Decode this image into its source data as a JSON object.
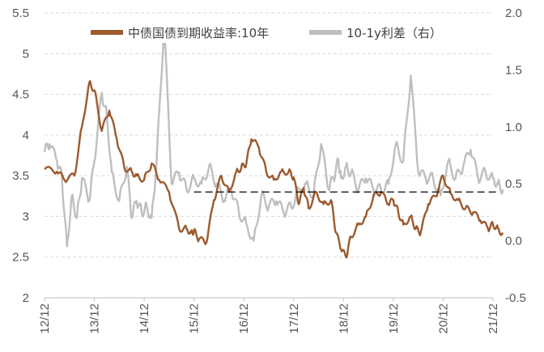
{
  "chart_data": {
    "type": "line",
    "x_tick_labels": [
      "12/12",
      "13/12",
      "14/12",
      "15/12",
      "16/12",
      "17/12",
      "18/12",
      "19/12",
      "20/12",
      "21/12"
    ],
    "y_left": {
      "ylim": [
        2,
        5.5
      ],
      "tick_labels": [
        "2",
        "2.5",
        "3",
        "3.5",
        "4",
        "4.5",
        "5",
        "5.5"
      ]
    },
    "y_right": {
      "ylim": [
        -0.5,
        2.0
      ],
      "tick_labels": [
        "-0.5",
        "0.0",
        "0.5",
        "1.0",
        "1.5",
        "2.0"
      ]
    },
    "legend": [
      "中债国债到期收益率:10年",
      "10-1y利差（右）"
    ],
    "series": [
      {
        "name": "中债国债到期收益率:10年",
        "axis": "left",
        "color": "#9c5a2e",
        "x": [
          0,
          0.25,
          0.4,
          0.6,
          0.75,
          0.9,
          1.0,
          1.15,
          1.3,
          1.45,
          1.6,
          1.75,
          1.85,
          2.0,
          2.15,
          2.3,
          2.5,
          2.7,
          2.85,
          2.95,
          3.0,
          3.1,
          3.25,
          3.4,
          3.55,
          3.7,
          3.85,
          3.95,
          4.05,
          4.15,
          4.3,
          4.45,
          4.6,
          4.75,
          4.9,
          5.0,
          5.1,
          5.2,
          5.3,
          5.45,
          5.6,
          5.75,
          5.85,
          5.95,
          6.05,
          6.15,
          6.3,
          6.45,
          6.6,
          6.75,
          6.9,
          7.0,
          7.1,
          7.2,
          7.35,
          7.45,
          7.55,
          7.7,
          7.85,
          8.0,
          8.15,
          8.3,
          8.45,
          8.6,
          8.75,
          8.9,
          9.0,
          9.1,
          9.2
        ],
        "y": [
          3.58,
          3.55,
          3.45,
          3.5,
          4.1,
          4.65,
          4.55,
          4.05,
          4.3,
          3.95,
          3.6,
          3.55,
          3.5,
          3.45,
          3.65,
          3.45,
          3.3,
          2.85,
          2.85,
          2.8,
          2.82,
          2.72,
          2.68,
          3.2,
          3.5,
          3.3,
          3.55,
          3.6,
          3.65,
          3.95,
          3.85,
          3.55,
          3.45,
          3.55,
          3.55,
          3.48,
          3.15,
          3.35,
          3.1,
          3.3,
          3.15,
          3.2,
          2.8,
          2.6,
          2.5,
          2.75,
          2.9,
          3.0,
          3.25,
          3.3,
          3.15,
          3.2,
          3.05,
          2.9,
          3.0,
          2.85,
          2.8,
          3.15,
          3.25,
          3.5,
          3.28,
          3.2,
          3.1,
          3.05,
          2.95,
          2.85,
          2.9,
          2.85,
          2.78
        ]
      },
      {
        "name": "10-1y利差（右）",
        "axis": "right",
        "color": "#bfbfbf",
        "x": [
          0,
          0.1,
          0.25,
          0.35,
          0.45,
          0.55,
          0.65,
          0.75,
          0.9,
          1.0,
          1.15,
          1.25,
          1.35,
          1.5,
          1.65,
          1.75,
          1.85,
          1.95,
          2.05,
          2.15,
          2.25,
          2.4,
          2.55,
          2.7,
          2.85,
          3.0,
          3.15,
          3.3,
          3.45,
          3.6,
          3.75,
          3.9,
          4.05,
          4.2,
          4.35,
          4.5,
          4.65,
          4.8,
          4.95,
          5.1,
          5.25,
          5.4,
          5.55,
          5.7,
          5.8,
          5.9,
          5.95,
          6.05,
          6.15,
          6.3,
          6.45,
          6.6,
          6.75,
          6.9,
          7.05,
          7.2,
          7.35,
          7.5,
          7.65,
          7.8,
          7.95,
          8.1,
          8.25,
          8.4,
          8.55,
          8.7,
          8.85,
          9.0,
          9.1,
          9.2
        ],
        "y": [
          0.78,
          0.85,
          0.7,
          0.55,
          -0.05,
          0.4,
          0.2,
          0.55,
          0.35,
          0.7,
          1.3,
          1.1,
          0.6,
          0.35,
          0.65,
          0.2,
          0.35,
          0.25,
          0.3,
          0.2,
          0.7,
          1.9,
          0.5,
          0.6,
          0.45,
          0.55,
          0.5,
          0.65,
          0.5,
          0.35,
          0.45,
          0.25,
          0.15,
          0.0,
          0.4,
          0.3,
          0.35,
          0.25,
          0.3,
          0.45,
          0.5,
          0.4,
          0.85,
          0.45,
          0.55,
          0.7,
          0.55,
          0.65,
          0.6,
          0.45,
          0.55,
          0.45,
          0.45,
          0.5,
          0.85,
          0.7,
          1.45,
          0.6,
          0.55,
          0.55,
          0.4,
          0.7,
          0.55,
          0.65,
          0.8,
          0.55,
          0.6,
          0.55,
          0.5,
          0.45
        ]
      }
    ],
    "reference_line": {
      "axis": "left",
      "value": 3.3,
      "x_start": 3.0,
      "x_end": 9.1,
      "style": "dashed"
    }
  }
}
